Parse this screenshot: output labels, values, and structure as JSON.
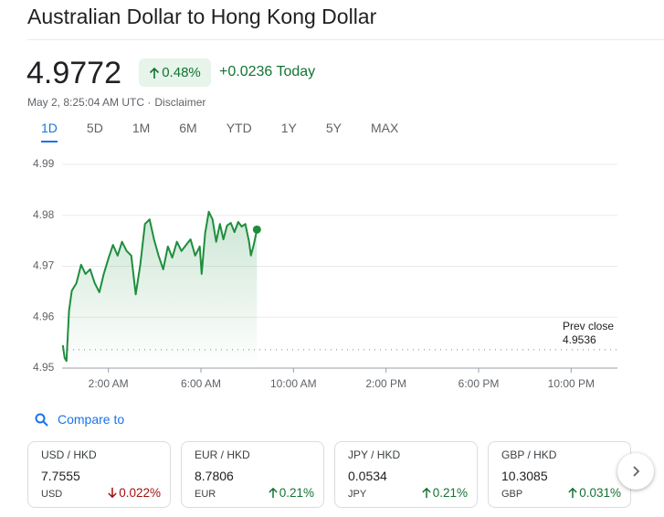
{
  "header": {
    "title": "Australian Dollar to Hong Kong Dollar",
    "price": "4.9772",
    "change_pct": "0.48%",
    "change_abs": "+0.0236 Today",
    "timestamp": "May 2, 8:25:04 AM UTC ·",
    "disclaimer": "Disclaimer"
  },
  "ranges": [
    "1D",
    "5D",
    "1M",
    "6M",
    "YTD",
    "1Y",
    "5Y",
    "MAX"
  ],
  "selected_range": "1D",
  "chart_data": {
    "type": "line",
    "color": "#1e8e3e",
    "x": [
      0.03,
      0.11,
      0.19,
      0.3,
      0.42,
      0.62,
      0.82,
      1.01,
      1.21,
      1.41,
      1.61,
      1.8,
      2,
      2.2,
      2.4,
      2.59,
      2.79,
      2.99,
      3.18,
      3.38,
      3.58,
      3.78,
      3.97,
      4.17,
      4.37,
      4.57,
      4.76,
      4.96,
      5.16,
      5.36,
      5.55,
      5.75,
      5.95,
      6.03,
      6.18,
      6.34,
      6.5,
      6.66,
      6.82,
      6.97,
      7.13,
      7.29,
      7.45,
      7.61,
      7.76,
      7.92,
      8.08,
      8.16,
      8.28,
      8.42
    ],
    "values": [
      4.9545,
      4.952,
      4.9514,
      4.9613,
      4.9652,
      4.9667,
      4.9703,
      4.9685,
      4.9694,
      4.9667,
      4.9649,
      4.9685,
      4.9715,
      4.9742,
      4.9721,
      4.9748,
      4.973,
      4.9721,
      4.9645,
      4.9703,
      4.9783,
      4.9792,
      4.9753,
      4.9721,
      4.9694,
      4.9739,
      4.9717,
      4.9748,
      4.973,
      4.9742,
      4.9753,
      4.9721,
      4.9739,
      4.9685,
      4.9765,
      4.9807,
      4.9792,
      4.9748,
      4.9783,
      4.9753,
      4.978,
      4.9785,
      4.9767,
      4.9787,
      4.9778,
      4.9783,
      4.9748,
      4.9721,
      4.9742,
      4.9772
    ],
    "xlim": [
      0,
      24
    ],
    "xticks": [
      {
        "value": 2,
        "label": "2:00 AM"
      },
      {
        "value": 6,
        "label": "6:00 AM"
      },
      {
        "value": 10,
        "label": "10:00 AM"
      },
      {
        "value": 14,
        "label": "2:00 PM"
      },
      {
        "value": 18,
        "label": "6:00 PM"
      },
      {
        "value": 22,
        "label": "10:00 PM"
      }
    ],
    "ylim": [
      4.95,
      4.99
    ],
    "yticks": [
      4.95,
      4.96,
      4.97,
      4.98,
      4.99
    ],
    "grid": true,
    "prev_close_label": "Prev close",
    "prev_close": 4.9536
  },
  "compare": {
    "label": "Compare to",
    "items": [
      {
        "pair": "USD / HKD",
        "price": "7.7555",
        "code": "USD",
        "change": "0.022%",
        "direction": "down"
      },
      {
        "pair": "EUR / HKD",
        "price": "8.7806",
        "code": "EUR",
        "change": "0.21%",
        "direction": "up"
      },
      {
        "pair": "JPY / HKD",
        "price": "0.0534",
        "code": "JPY",
        "change": "0.21%",
        "direction": "up"
      },
      {
        "pair": "GBP / HKD",
        "price": "10.3085",
        "code": "GBP",
        "change": "0.031%",
        "direction": "up"
      }
    ]
  }
}
